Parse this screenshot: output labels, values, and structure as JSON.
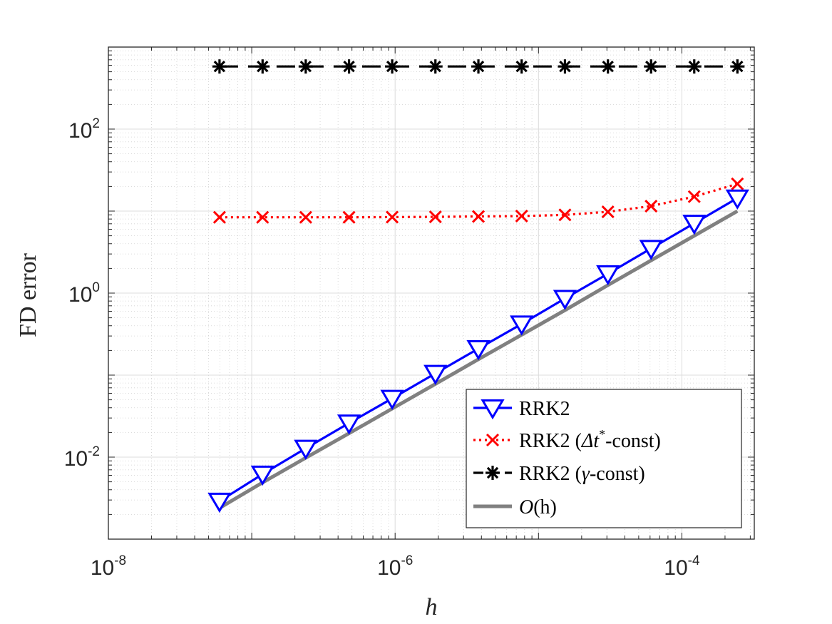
{
  "chart_data": {
    "type": "line",
    "x_scale": "log",
    "y_scale": "log",
    "xlim": [
      1e-08,
      0.00032
    ],
    "ylim": [
      0.001,
      1000
    ],
    "xlabel": "h",
    "ylabel": "FD error",
    "grid": true,
    "legend_position": "bottom-right",
    "x_ticks": [
      {
        "value": 1e-08,
        "base": "10",
        "exp": "-8"
      },
      {
        "value": 1e-06,
        "base": "10",
        "exp": "-6"
      },
      {
        "value": 0.0001,
        "base": "10",
        "exp": "-4"
      }
    ],
    "y_ticks": [
      {
        "value": 0.01,
        "base": "10",
        "exp": "-2"
      },
      {
        "value": 1,
        "base": "10",
        "exp": "0"
      },
      {
        "value": 100,
        "base": "10",
        "exp": "2"
      }
    ],
    "x": [
      5.96e-08,
      1.19e-07,
      2.38e-07,
      4.77e-07,
      9.54e-07,
      1.91e-06,
      3.81e-06,
      7.63e-06,
      1.53e-05,
      3.05e-05,
      6.1e-05,
      0.000122,
      0.000244
    ],
    "series": [
      {
        "name": "RRK2",
        "marker": "triangle-down",
        "line": "solid",
        "color": "#0000ff",
        "values": [
          0.0029,
          0.0062,
          0.0128,
          0.026,
          0.052,
          0.105,
          0.21,
          0.42,
          0.86,
          1.72,
          3.5,
          7.1,
          14.4
        ]
      },
      {
        "name": "RRK2 (Δt*-const)",
        "marker": "x",
        "line": "dotted",
        "color": "#ff0000",
        "values": [
          8.4,
          8.4,
          8.4,
          8.4,
          8.45,
          8.5,
          8.6,
          8.7,
          9.0,
          9.8,
          11.5,
          15.0,
          21.5
        ]
      },
      {
        "name": "RRK2 (γ-const)",
        "marker": "asterisk",
        "line": "dashed",
        "color": "#000000",
        "values": [
          580,
          580,
          580,
          580,
          580,
          580,
          580,
          580,
          580,
          580,
          580,
          580,
          580
        ]
      },
      {
        "name": "O(h)",
        "marker": "none",
        "line": "solid",
        "color": "#808080",
        "values": [
          0.0024,
          0.0049,
          0.0098,
          0.0195,
          0.039,
          0.078,
          0.156,
          0.31,
          0.62,
          1.25,
          2.5,
          5.0,
          10.0
        ]
      }
    ],
    "legend": [
      {
        "main": "RRK2",
        "suffix": ""
      },
      {
        "main": "RRK2 (",
        "math": "Δt",
        "sup": "*",
        "suffix": "-const)"
      },
      {
        "main": "RRK2 (",
        "math": "γ",
        "sup": "",
        "suffix": "-const)"
      },
      {
        "main": "",
        "math": "O",
        "sup": "",
        "suffix": "(h)"
      }
    ]
  }
}
